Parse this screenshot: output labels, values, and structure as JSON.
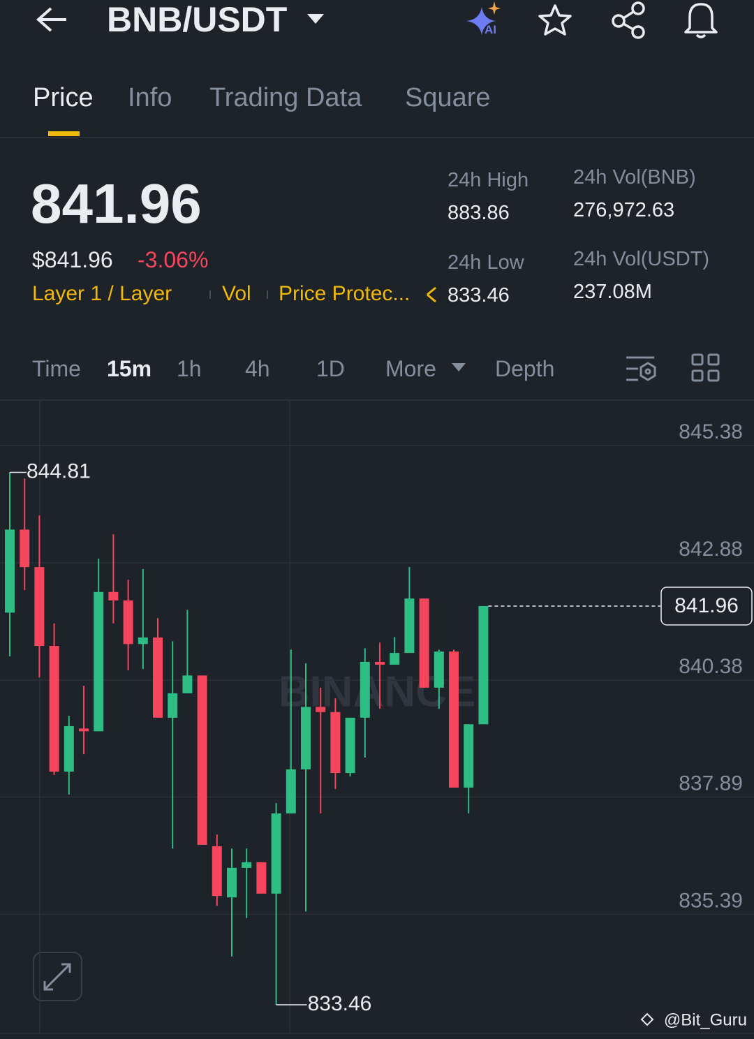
{
  "header": {
    "pair": "BNB/USDT",
    "ai_badge": "AI"
  },
  "tabs": [
    "Price",
    "Info",
    "Trading Data",
    "Square"
  ],
  "ticker": {
    "last": "841.96",
    "usd_price": "$841.96",
    "change": "-3.06%",
    "tags": [
      "Layer 1 / Layer",
      "Vol",
      "Price Protec..."
    ],
    "stats": [
      {
        "label": "24h High",
        "value": "883.86"
      },
      {
        "label": "24h Vol(BNB)",
        "value": "276,972.63"
      },
      {
        "label": "24h Low",
        "value": "833.46"
      },
      {
        "label": "24h Vol(USDT)",
        "value": "237.08M"
      }
    ]
  },
  "intervals": [
    "Time",
    "15m",
    "1h",
    "4h",
    "1D",
    "More",
    "Depth"
  ],
  "chart_data": {
    "type": "candlestick",
    "up_color": "#2ebd85",
    "down_color": "#f6465d",
    "ylim": [
      832.85,
      846.35
    ],
    "yticks": [
      845.38,
      842.88,
      840.38,
      837.89,
      835.39
    ],
    "grid": true,
    "watermark": "BINANCE",
    "candles": [
      {
        "open": 841.82,
        "high": 844.81,
        "low": 840.89,
        "close": 843.59
      },
      {
        "open": 843.59,
        "high": 844.68,
        "low": 842.3,
        "close": 842.79
      },
      {
        "open": 842.79,
        "high": 843.89,
        "low": 840.44,
        "close": 841.11
      },
      {
        "open": 841.11,
        "high": 841.59,
        "low": 838.36,
        "close": 838.43
      },
      {
        "open": 838.43,
        "high": 839.62,
        "low": 837.94,
        "close": 839.4
      },
      {
        "open": 839.35,
        "high": 840.26,
        "low": 838.8,
        "close": 839.29
      },
      {
        "open": 839.29,
        "high": 842.97,
        "low": 839.29,
        "close": 842.26
      },
      {
        "open": 842.26,
        "high": 843.49,
        "low": 841.59,
        "close": 842.08
      },
      {
        "open": 842.08,
        "high": 842.52,
        "low": 840.59,
        "close": 841.15
      },
      {
        "open": 841.15,
        "high": 842.75,
        "low": 840.62,
        "close": 841.29
      },
      {
        "open": 841.29,
        "high": 841.7,
        "low": 839.58,
        "close": 839.58
      },
      {
        "open": 839.58,
        "high": 841.21,
        "low": 836.79,
        "close": 840.1
      },
      {
        "open": 840.1,
        "high": 841.88,
        "low": 840.1,
        "close": 840.48
      },
      {
        "open": 840.48,
        "high": 840.48,
        "low": 836.87,
        "close": 836.87
      },
      {
        "open": 836.84,
        "high": 837.09,
        "low": 835.57,
        "close": 835.78
      },
      {
        "open": 835.75,
        "high": 836.79,
        "low": 834.49,
        "close": 836.38
      },
      {
        "open": 836.38,
        "high": 836.79,
        "low": 835.31,
        "close": 836.5
      },
      {
        "open": 836.5,
        "high": 836.5,
        "low": 835.83,
        "close": 835.83
      },
      {
        "open": 835.83,
        "high": 837.76,
        "low": 833.46,
        "close": 837.54
      },
      {
        "open": 837.54,
        "high": 841.03,
        "low": 837.54,
        "close": 838.48
      },
      {
        "open": 838.48,
        "high": 840.74,
        "low": 835.45,
        "close": 839.81
      },
      {
        "open": 839.81,
        "high": 840.22,
        "low": 837.54,
        "close": 839.7
      },
      {
        "open": 839.7,
        "high": 839.99,
        "low": 838.06,
        "close": 838.4
      },
      {
        "open": 838.4,
        "high": 839.58,
        "low": 838.33,
        "close": 839.58
      },
      {
        "open": 839.58,
        "high": 841.06,
        "low": 838.73,
        "close": 840.77
      },
      {
        "open": 840.77,
        "high": 841.18,
        "low": 839.77,
        "close": 840.71
      },
      {
        "open": 840.71,
        "high": 841.3,
        "low": 840.71,
        "close": 840.96
      },
      {
        "open": 840.96,
        "high": 842.79,
        "low": 840.96,
        "close": 842.12
      },
      {
        "open": 842.12,
        "high": 842.12,
        "low": 840.22,
        "close": 840.22
      },
      {
        "open": 840.22,
        "high": 841.03,
        "low": 839.77,
        "close": 840.99
      },
      {
        "open": 840.99,
        "high": 841.03,
        "low": 838.09,
        "close": 838.09
      },
      {
        "open": 838.09,
        "high": 839.44,
        "low": 837.54,
        "close": 839.44
      },
      {
        "open": 839.44,
        "high": 841.96,
        "low": 839.44,
        "close": 841.96
      }
    ]
  },
  "credit": "@Bit_Guru"
}
